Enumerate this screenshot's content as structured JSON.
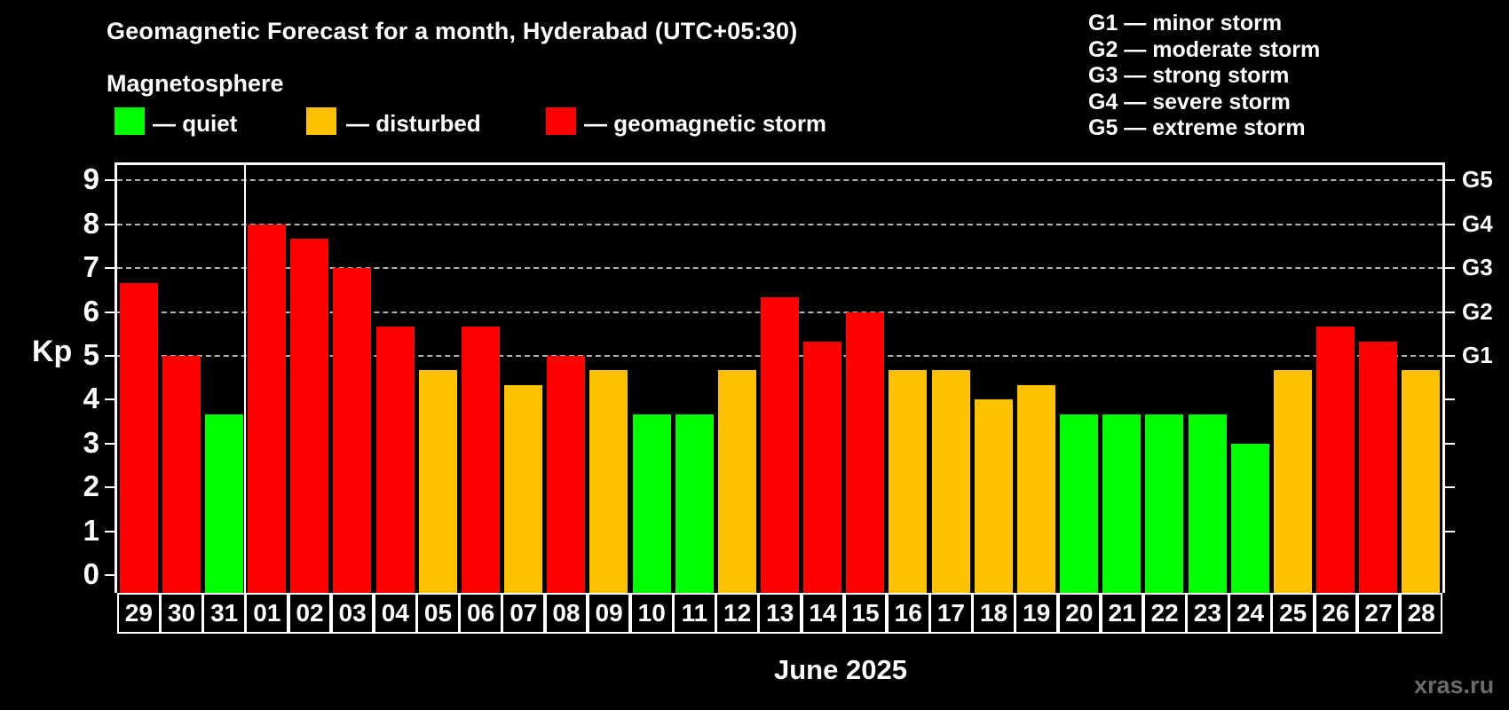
{
  "header": {
    "title": "Geomagnetic Forecast for a month, Hyderabad (UTC+05:30)",
    "subtitle": "Magnetosphere"
  },
  "legend": {
    "items": [
      {
        "key": "quiet",
        "label": "— quiet",
        "color": "#00ff00"
      },
      {
        "key": "disturbed",
        "label": "— disturbed",
        "color": "#ffc000"
      },
      {
        "key": "storm",
        "label": "— geomagnetic storm",
        "color": "#ff0000"
      }
    ]
  },
  "g_legend": {
    "lines": [
      "G1 — minor storm",
      "G2 — moderate storm",
      "G3 — strong storm",
      "G4 — severe storm",
      "G5 — extreme storm"
    ]
  },
  "watermark": "xras.ru",
  "status_colors": {
    "quiet": "#00ff00",
    "disturbed": "#ffc000",
    "storm": "#ff0000"
  },
  "chart_data": {
    "type": "bar",
    "title": "Geomagnetic Forecast for a month, Hyderabad (UTC+05:30)",
    "xlabel": "June 2025",
    "ylabel": "Kp",
    "ylim": [
      0,
      9
    ],
    "y_ticks": [
      0,
      1,
      2,
      3,
      4,
      5,
      6,
      7,
      8,
      9
    ],
    "grid_levels": [
      5,
      6,
      7,
      8,
      9
    ],
    "grid_on": true,
    "legend_position": "top",
    "right_axis_labels": [
      {
        "label": "G1",
        "kp": 5
      },
      {
        "label": "G2",
        "kp": 6
      },
      {
        "label": "G3",
        "kp": 7
      },
      {
        "label": "G4",
        "kp": 8
      },
      {
        "label": "G5",
        "kp": 9
      }
    ],
    "month_separator_after_index": 2,
    "categories": [
      "29",
      "30",
      "31",
      "01",
      "02",
      "03",
      "04",
      "05",
      "06",
      "07",
      "08",
      "09",
      "10",
      "11",
      "12",
      "13",
      "14",
      "15",
      "16",
      "17",
      "18",
      "19",
      "20",
      "21",
      "22",
      "23",
      "24",
      "25",
      "26",
      "27",
      "28"
    ],
    "series": [
      {
        "name": "Kp forecast",
        "values": [
          6.67,
          5.0,
          3.67,
          8.0,
          7.67,
          7.0,
          5.67,
          4.67,
          5.67,
          4.33,
          5.0,
          4.67,
          3.67,
          3.67,
          4.67,
          6.33,
          5.33,
          6.0,
          4.67,
          4.67,
          4.0,
          4.33,
          3.67,
          3.67,
          3.67,
          3.67,
          3.0,
          4.67,
          5.67,
          5.33,
          4.67
        ],
        "statuses": [
          "storm",
          "storm",
          "quiet",
          "storm",
          "storm",
          "storm",
          "storm",
          "disturbed",
          "storm",
          "disturbed",
          "storm",
          "disturbed",
          "quiet",
          "quiet",
          "disturbed",
          "storm",
          "storm",
          "storm",
          "disturbed",
          "disturbed",
          "disturbed",
          "disturbed",
          "quiet",
          "quiet",
          "quiet",
          "quiet",
          "quiet",
          "disturbed",
          "storm",
          "storm",
          "disturbed"
        ]
      }
    ]
  }
}
